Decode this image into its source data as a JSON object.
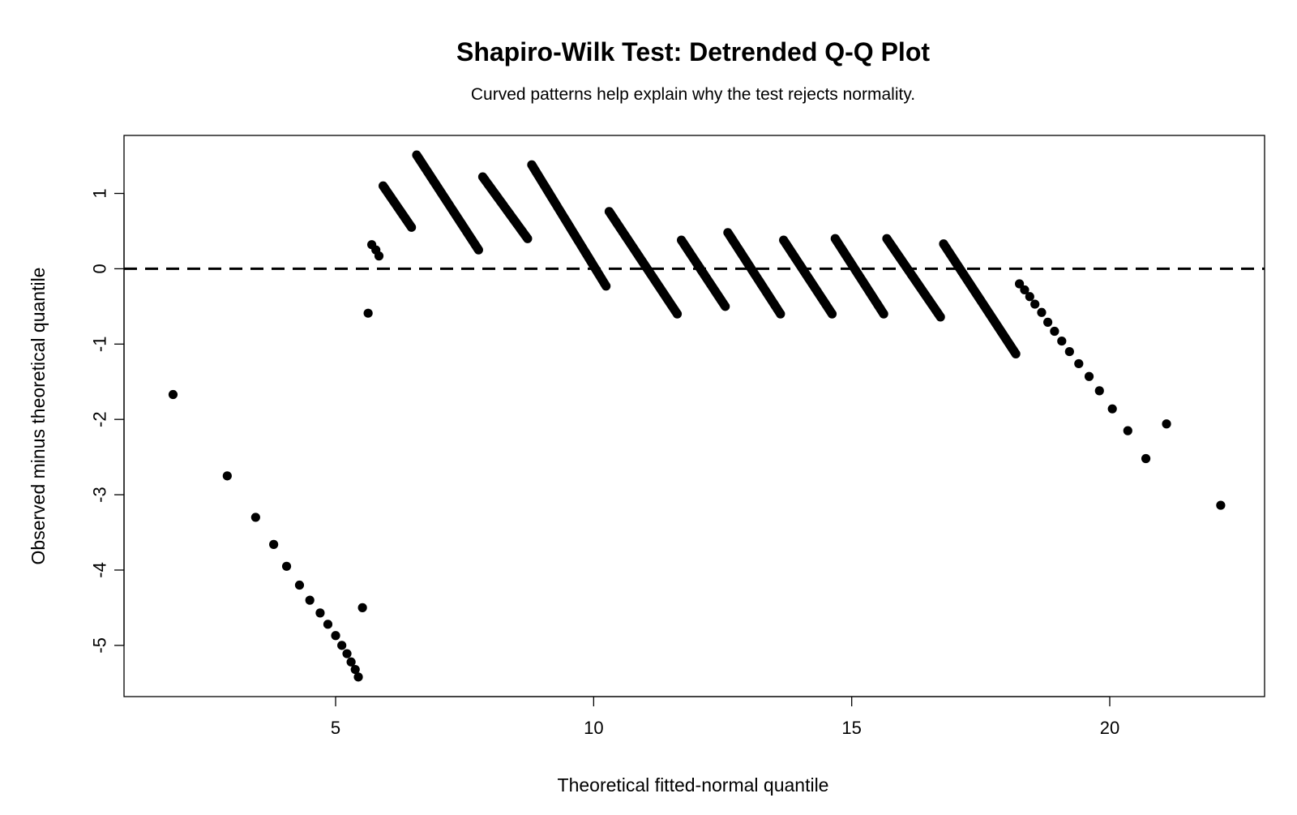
{
  "chart_data": {
    "type": "scatter",
    "title": "Shapiro-Wilk Test: Detrended Q-Q Plot",
    "subtitle": "Curved patterns help explain why the test rejects normality.",
    "xlabel": "Theoretical fitted-normal quantile",
    "ylabel": "Observed minus theoretical quantile",
    "xlim": [
      0.9,
      23
    ],
    "ylim": [
      -5.68,
      1.77
    ],
    "xticks": [
      5,
      10,
      15,
      20
    ],
    "yticks": [
      -5,
      -4,
      -3,
      -2,
      -1,
      0,
      1
    ],
    "reference_line": {
      "y": 0,
      "style": "dashed"
    },
    "grid": false,
    "legend": "none",
    "point_color": "#000000",
    "isolated_points": [
      [
        1.85,
        -1.67
      ],
      [
        2.9,
        -2.75
      ],
      [
        3.45,
        -3.3
      ],
      [
        3.8,
        -3.66
      ],
      [
        4.05,
        -3.95
      ],
      [
        4.3,
        -4.2
      ],
      [
        4.5,
        -4.4
      ],
      [
        4.7,
        -4.57
      ],
      [
        4.85,
        -4.72
      ],
      [
        5.0,
        -4.87
      ],
      [
        5.12,
        -5.0
      ],
      [
        5.22,
        -5.11
      ],
      [
        5.3,
        -5.22
      ],
      [
        5.38,
        -5.32
      ],
      [
        5.44,
        -5.42
      ],
      [
        5.52,
        -4.5
      ],
      [
        5.63,
        -0.59
      ],
      [
        5.7,
        0.32
      ],
      [
        5.78,
        0.25
      ],
      [
        5.84,
        0.17
      ],
      [
        18.25,
        -0.2
      ],
      [
        18.35,
        -0.28
      ],
      [
        18.45,
        -0.37
      ],
      [
        18.55,
        -0.47
      ],
      [
        18.68,
        -0.58
      ],
      [
        18.8,
        -0.71
      ],
      [
        18.93,
        -0.83
      ],
      [
        19.07,
        -0.96
      ],
      [
        19.22,
        -1.1
      ],
      [
        19.4,
        -1.26
      ],
      [
        19.6,
        -1.43
      ],
      [
        19.8,
        -1.62
      ],
      [
        20.05,
        -1.86
      ],
      [
        20.35,
        -2.15
      ],
      [
        20.7,
        -2.52
      ],
      [
        21.1,
        -2.06
      ],
      [
        22.15,
        -3.14
      ]
    ],
    "runs": [
      {
        "x": [
          5.92,
          6.47
        ],
        "y": [
          1.1,
          0.55
        ]
      },
      {
        "x": [
          6.57,
          7.77
        ],
        "y": [
          1.51,
          0.25
        ]
      },
      {
        "x": [
          7.85,
          8.72
        ],
        "y": [
          1.22,
          0.4
        ]
      },
      {
        "x": [
          8.8,
          10.24
        ],
        "y": [
          1.38,
          -0.23
        ]
      },
      {
        "x": [
          10.3,
          11.62
        ],
        "y": [
          0.76,
          -0.6
        ]
      },
      {
        "x": [
          11.7,
          12.55
        ],
        "y": [
          0.38,
          -0.5
        ]
      },
      {
        "x": [
          12.6,
          13.62
        ],
        "y": [
          0.48,
          -0.6
        ]
      },
      {
        "x": [
          13.68,
          14.62
        ],
        "y": [
          0.38,
          -0.6
        ]
      },
      {
        "x": [
          14.68,
          15.62
        ],
        "y": [
          0.4,
          -0.6
        ]
      },
      {
        "x": [
          15.68,
          16.72
        ],
        "y": [
          0.4,
          -0.64
        ]
      },
      {
        "x": [
          16.78,
          18.18
        ],
        "y": [
          0.33,
          -1.13
        ]
      }
    ]
  }
}
